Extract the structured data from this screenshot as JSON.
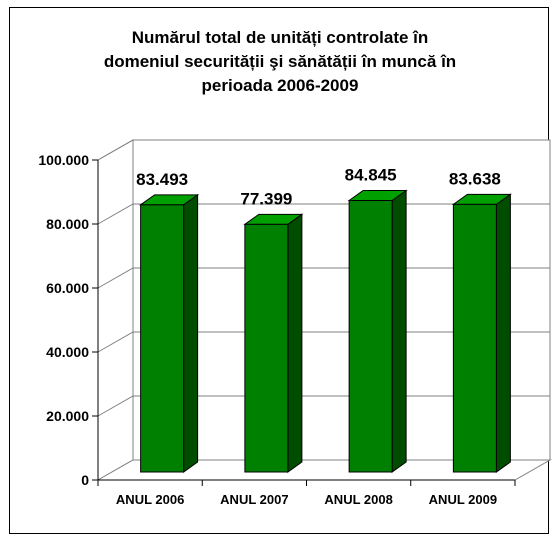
{
  "chart_data": {
    "type": "bar",
    "title": "Numărul total de unități controlate în\ndomeniul securității şi sănătății în muncă în\nperioada  2006-2009",
    "categories": [
      "ANUL 2006",
      "ANUL 2007",
      "ANUL 2008",
      "ANUL 2009"
    ],
    "values": [
      83493,
      77399,
      84845,
      83638
    ],
    "value_labels": [
      "83.493",
      "77.399",
      "84.845",
      "83.638"
    ],
    "ylim": [
      0,
      100000
    ],
    "yticks": [
      0,
      20000,
      40000,
      60000,
      80000,
      100000
    ],
    "ytick_labels": [
      "0",
      "20.000",
      "40.000",
      "60.000",
      "80.000",
      "100.000"
    ],
    "grid": true,
    "legend": "none",
    "bar_color": "#008000",
    "bar_side_color": "#004d00",
    "bar_top_color": "#00a000"
  }
}
